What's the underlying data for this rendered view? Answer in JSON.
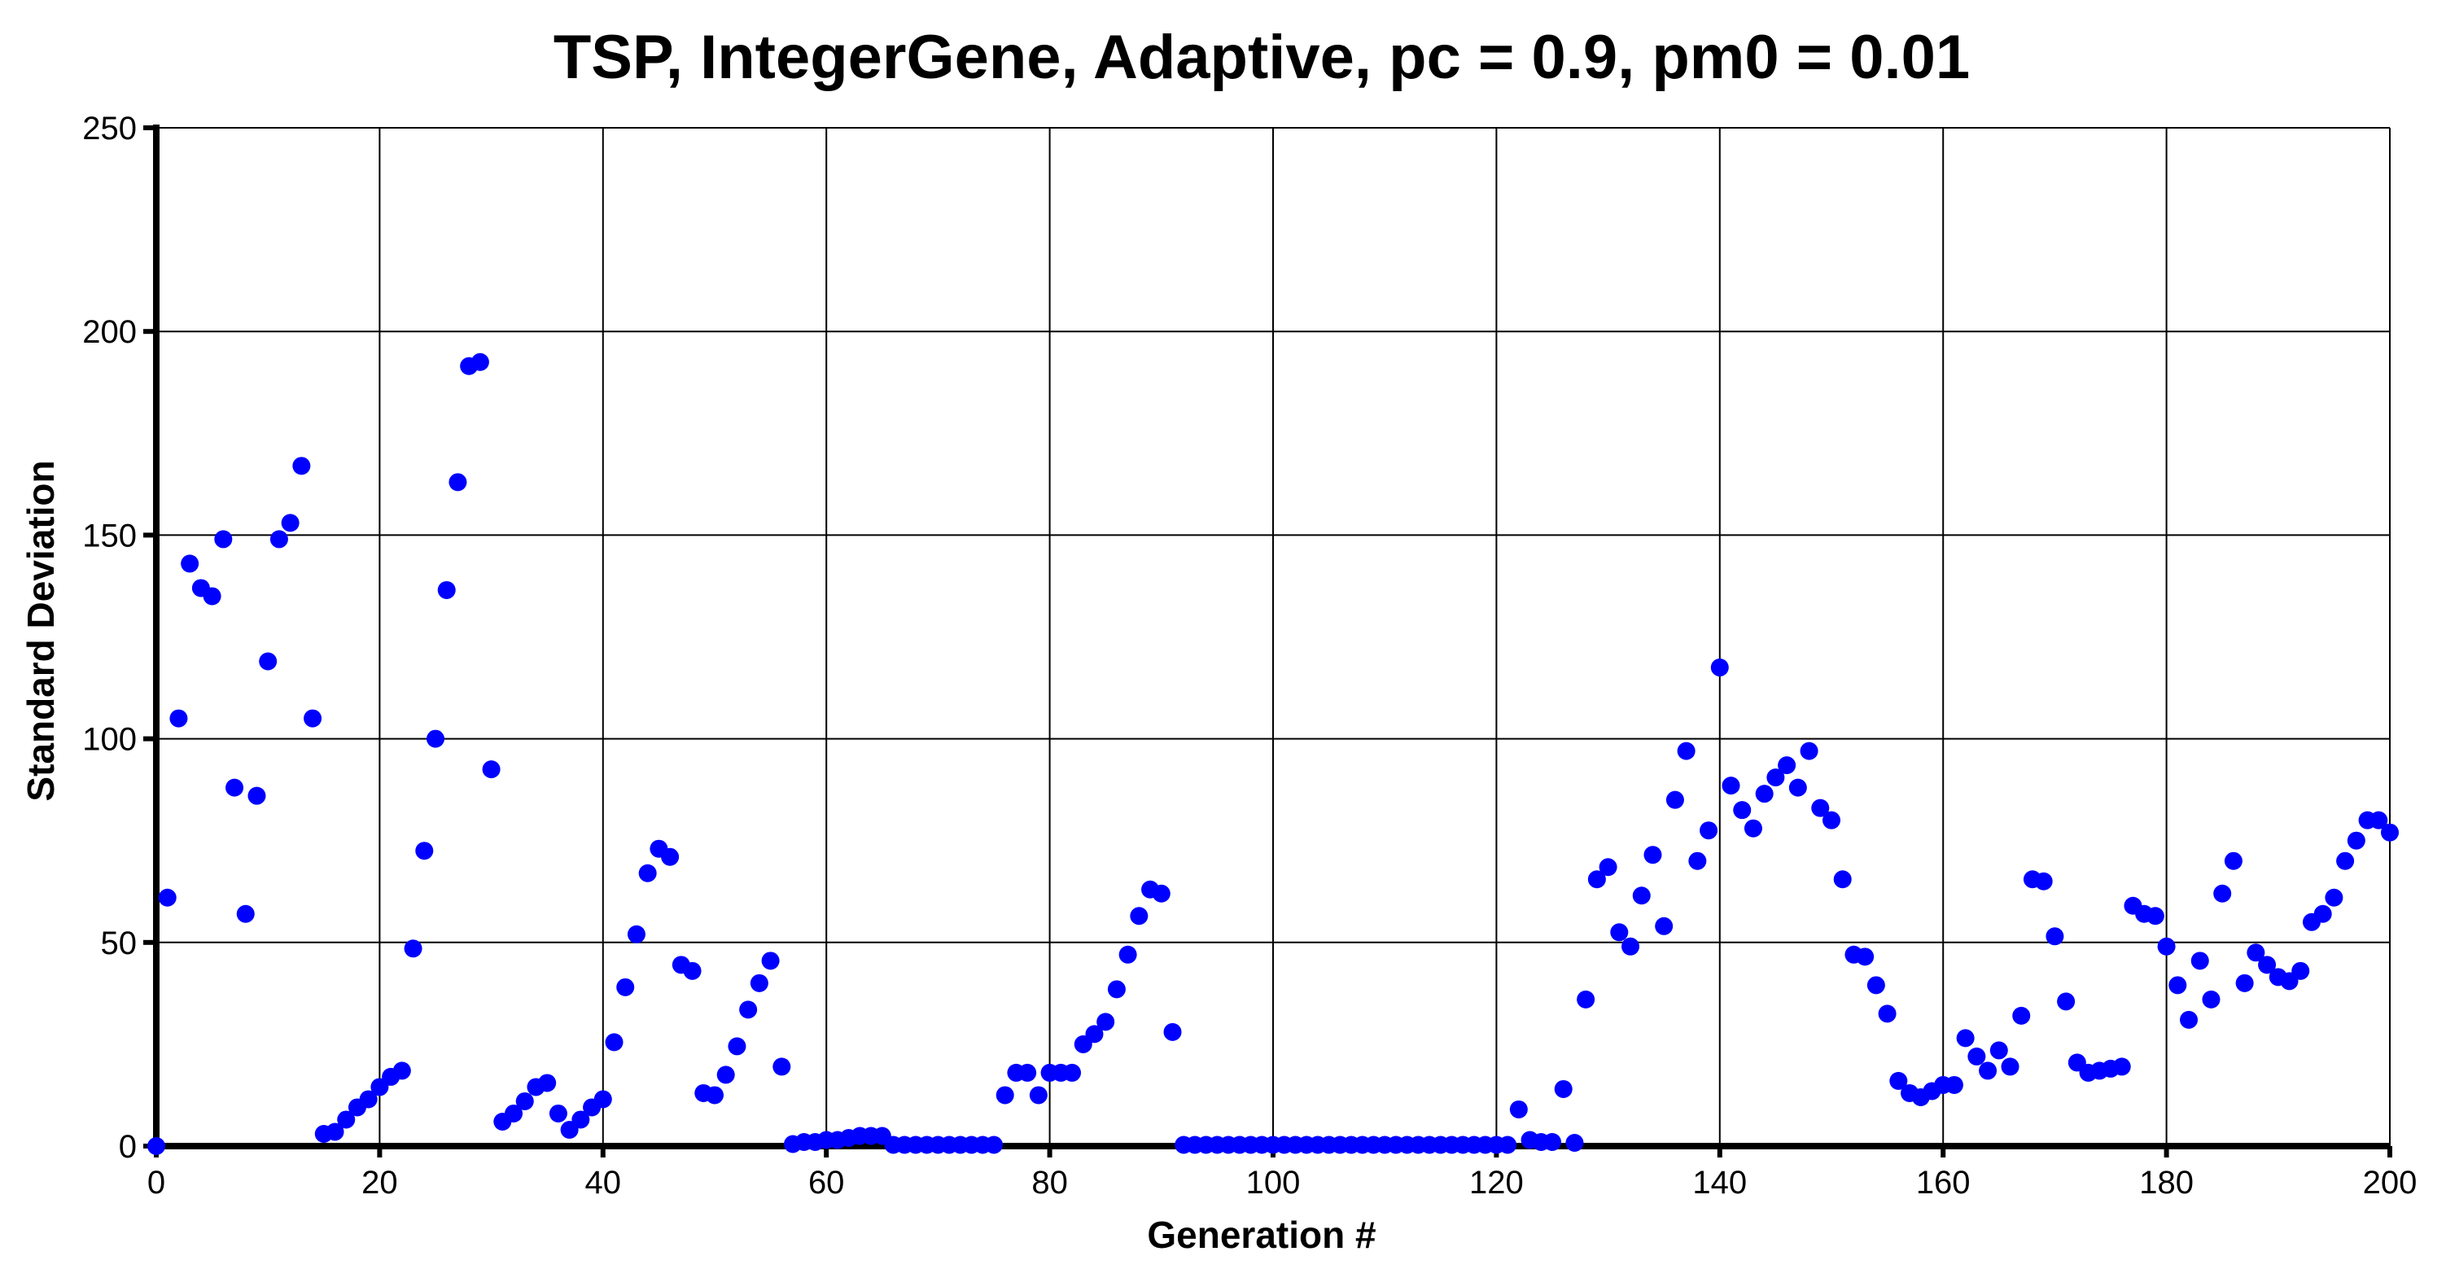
{
  "chart_data": {
    "type": "scatter",
    "title": "TSP, IntegerGene, Adaptive, pc = 0.9, pm0 = 0.01",
    "xlabel": "Generation #",
    "ylabel": "Standard Deviation",
    "xlim": [
      0,
      200
    ],
    "ylim": [
      0,
      250
    ],
    "xticks": [
      0,
      20,
      40,
      60,
      80,
      100,
      120,
      140,
      160,
      180,
      200
    ],
    "yticks": [
      0,
      50,
      100,
      150,
      200,
      250
    ],
    "grid": true,
    "legend": "none",
    "marker_color": "#0000ff",
    "x": [
      0,
      1,
      2,
      3,
      4,
      5,
      6,
      7,
      8,
      9,
      10,
      11,
      12,
      13,
      14,
      15,
      16,
      17,
      18,
      19,
      20,
      21,
      22,
      23,
      24,
      25,
      26,
      27,
      28,
      29,
      30,
      31,
      32,
      33,
      34,
      35,
      36,
      37,
      38,
      39,
      40,
      41,
      42,
      43,
      44,
      45,
      46,
      47,
      48,
      49,
      50,
      51,
      52,
      53,
      54,
      55,
      56,
      57,
      58,
      59,
      60,
      61,
      62,
      63,
      64,
      65,
      66,
      67,
      68,
      69,
      70,
      71,
      72,
      73,
      74,
      75,
      76,
      77,
      78,
      79,
      80,
      81,
      82,
      83,
      84,
      85,
      86,
      87,
      88,
      89,
      90,
      91,
      92,
      93,
      94,
      95,
      96,
      97,
      98,
      99,
      100,
      101,
      102,
      103,
      104,
      105,
      106,
      107,
      108,
      109,
      110,
      111,
      112,
      113,
      114,
      115,
      116,
      117,
      118,
      119,
      120,
      121,
      122,
      123,
      124,
      125,
      126,
      127,
      128,
      129,
      130,
      131,
      132,
      133,
      134,
      135,
      136,
      137,
      138,
      139,
      140,
      141,
      142,
      143,
      144,
      145,
      146,
      147,
      148,
      149,
      150,
      151,
      152,
      153,
      154,
      155,
      156,
      157,
      158,
      159,
      160,
      161,
      162,
      163,
      164,
      165,
      166,
      167,
      168,
      169,
      170,
      171,
      172,
      173,
      174,
      175,
      176,
      177,
      178,
      179,
      180,
      181,
      182,
      183,
      184,
      185,
      186,
      187,
      188,
      189,
      190,
      191,
      192,
      193,
      194,
      195,
      196,
      197,
      198,
      199,
      200
    ],
    "y": [
      0,
      61,
      105,
      143,
      137,
      135,
      149,
      88,
      57,
      86,
      119,
      149,
      153,
      167,
      105,
      3,
      3.5,
      6.5,
      9.5,
      11.5,
      14.5,
      17,
      18.5,
      48.5,
      72.5,
      100,
      136.5,
      163,
      191.5,
      192.5,
      92.5,
      6,
      8,
      11,
      14.5,
      15.5,
      8,
      4,
      6.5,
      9.5,
      11.5,
      25.5,
      39,
      52,
      67,
      73,
      71,
      44.5,
      43,
      13,
      12.5,
      17.5,
      24.5,
      33.5,
      40,
      45.5,
      19.5,
      0.5,
      1,
      1,
      1.5,
      1.5,
      2,
      2.5,
      2.5,
      2.5,
      0.3,
      0.3,
      0.3,
      0.3,
      0.3,
      0.3,
      0.3,
      0.3,
      0.3,
      0.3,
      12.5,
      18,
      18,
      12.5,
      18,
      18,
      18,
      25,
      27.5,
      30.5,
      38.5,
      47,
      56.5,
      63,
      62,
      28,
      0.3,
      0.3,
      0.3,
      0.3,
      0.3,
      0.3,
      0.3,
      0.3,
      0.3,
      0.3,
      0.3,
      0.3,
      0.3,
      0.3,
      0.3,
      0.3,
      0.3,
      0.3,
      0.3,
      0.3,
      0.3,
      0.3,
      0.3,
      0.3,
      0.3,
      0.3,
      0.3,
      0.3,
      0.3,
      0.3,
      9,
      1.5,
      1,
      1,
      14,
      0.8,
      36,
      65.5,
      68.5,
      52.5,
      49,
      61.5,
      71.5,
      54,
      85,
      97,
      70,
      77.5,
      117.5,
      88.5,
      82.5,
      78,
      86.5,
      90.5,
      93.5,
      88,
      97,
      83,
      80,
      65.5,
      47,
      46.5,
      39.5,
      32.5,
      16,
      13,
      12,
      13.5,
      15,
      15,
      26.5,
      22,
      18.5,
      23.5,
      19.5,
      32,
      65.5,
      65,
      51.5,
      35.5,
      20.5,
      18,
      18.5,
      19,
      19.5,
      59,
      57,
      56.5,
      49,
      39.5,
      31,
      45.5,
      36,
      62,
      70,
      40,
      47.5,
      44.5,
      41.5,
      40.5,
      43,
      55,
      57,
      61,
      70,
      75,
      80,
      80,
      77
    ]
  }
}
